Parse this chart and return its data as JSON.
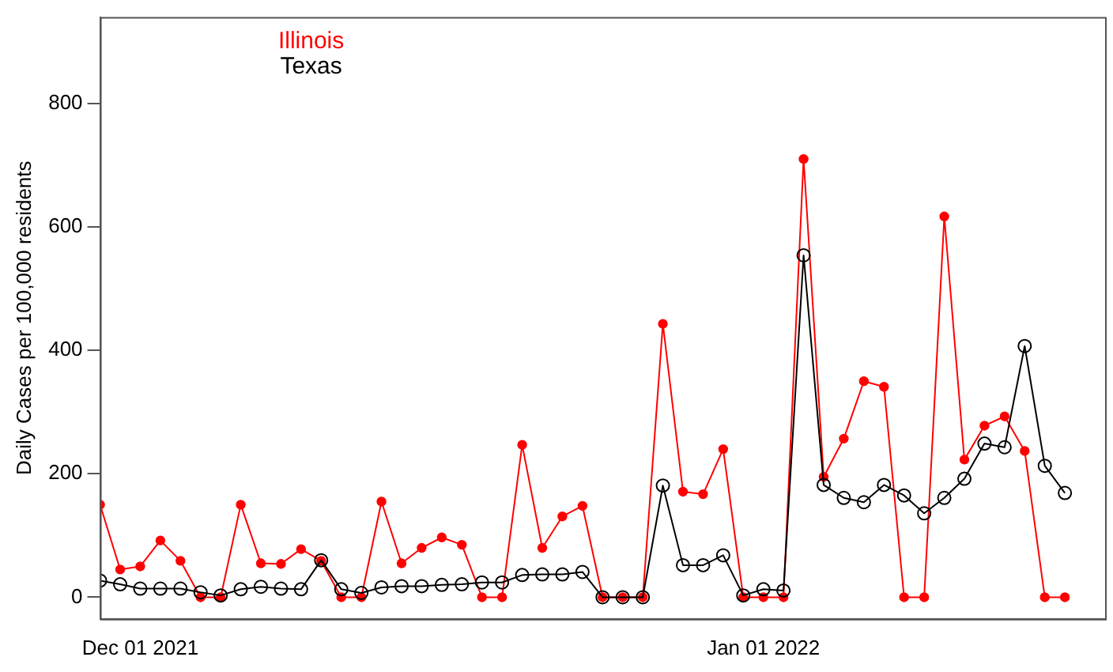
{
  "chart_data": {
    "type": "line",
    "ylabel": "Daily Cases per 100,000 residents",
    "x": [
      "2021-11-29",
      "2021-11-30",
      "2021-12-01",
      "2021-12-02",
      "2021-12-03",
      "2021-12-04",
      "2021-12-05",
      "2021-12-06",
      "2021-12-07",
      "2021-12-08",
      "2021-12-09",
      "2021-12-10",
      "2021-12-11",
      "2021-12-12",
      "2021-12-13",
      "2021-12-14",
      "2021-12-15",
      "2021-12-16",
      "2021-12-17",
      "2021-12-18",
      "2021-12-19",
      "2021-12-20",
      "2021-12-21",
      "2021-12-22",
      "2021-12-23",
      "2021-12-24",
      "2021-12-25",
      "2021-12-26",
      "2021-12-27",
      "2021-12-28",
      "2021-12-29",
      "2021-12-30",
      "2021-12-31",
      "2022-01-01",
      "2022-01-02",
      "2022-01-03",
      "2022-01-04",
      "2022-01-05",
      "2022-01-06",
      "2022-01-07",
      "2022-01-08",
      "2022-01-09",
      "2022-01-10",
      "2022-01-11",
      "2022-01-12",
      "2022-01-13",
      "2022-01-14",
      "2022-01-15",
      "2022-01-16"
    ],
    "series": [
      {
        "name": "Illinois",
        "color": "#ff0000",
        "values": [
          150,
          45,
          50,
          92,
          59,
          0,
          0,
          150,
          55,
          54,
          78,
          59,
          0,
          0,
          155,
          55,
          80,
          97,
          85,
          0,
          0,
          247,
          80,
          131,
          148,
          0,
          0,
          0,
          443,
          171,
          167,
          240,
          0,
          0,
          0,
          710,
          195,
          257,
          350,
          341,
          0,
          0,
          617,
          223,
          278,
          293,
          237,
          0,
          0
        ]
      },
      {
        "name": "Texas",
        "color": "#000000",
        "values": [
          27,
          21,
          14,
          14,
          14,
          8,
          3,
          13,
          17,
          14,
          13,
          60,
          13,
          7,
          16,
          18,
          18,
          20,
          21,
          24,
          24,
          36,
          37,
          37,
          41,
          0,
          0,
          0,
          181,
          52,
          52,
          68,
          3,
          13,
          11,
          554,
          182,
          161,
          154,
          182,
          165,
          136,
          161,
          192,
          249,
          243,
          407,
          213,
          169
        ]
      }
    ],
    "xlim": [
      "2021-11-29",
      "2022-01-18"
    ],
    "xticks": [
      {
        "value": "2021-12-01",
        "label": "Dec 01 2021"
      },
      {
        "value": "2022-01-01",
        "label": "Jan 01 2022"
      }
    ],
    "ylim": [
      -35,
      940
    ],
    "yticks": [
      0,
      200,
      400,
      600,
      800
    ],
    "grid": false,
    "legend": "top left",
    "marker": "circle",
    "line_style": "solid"
  }
}
